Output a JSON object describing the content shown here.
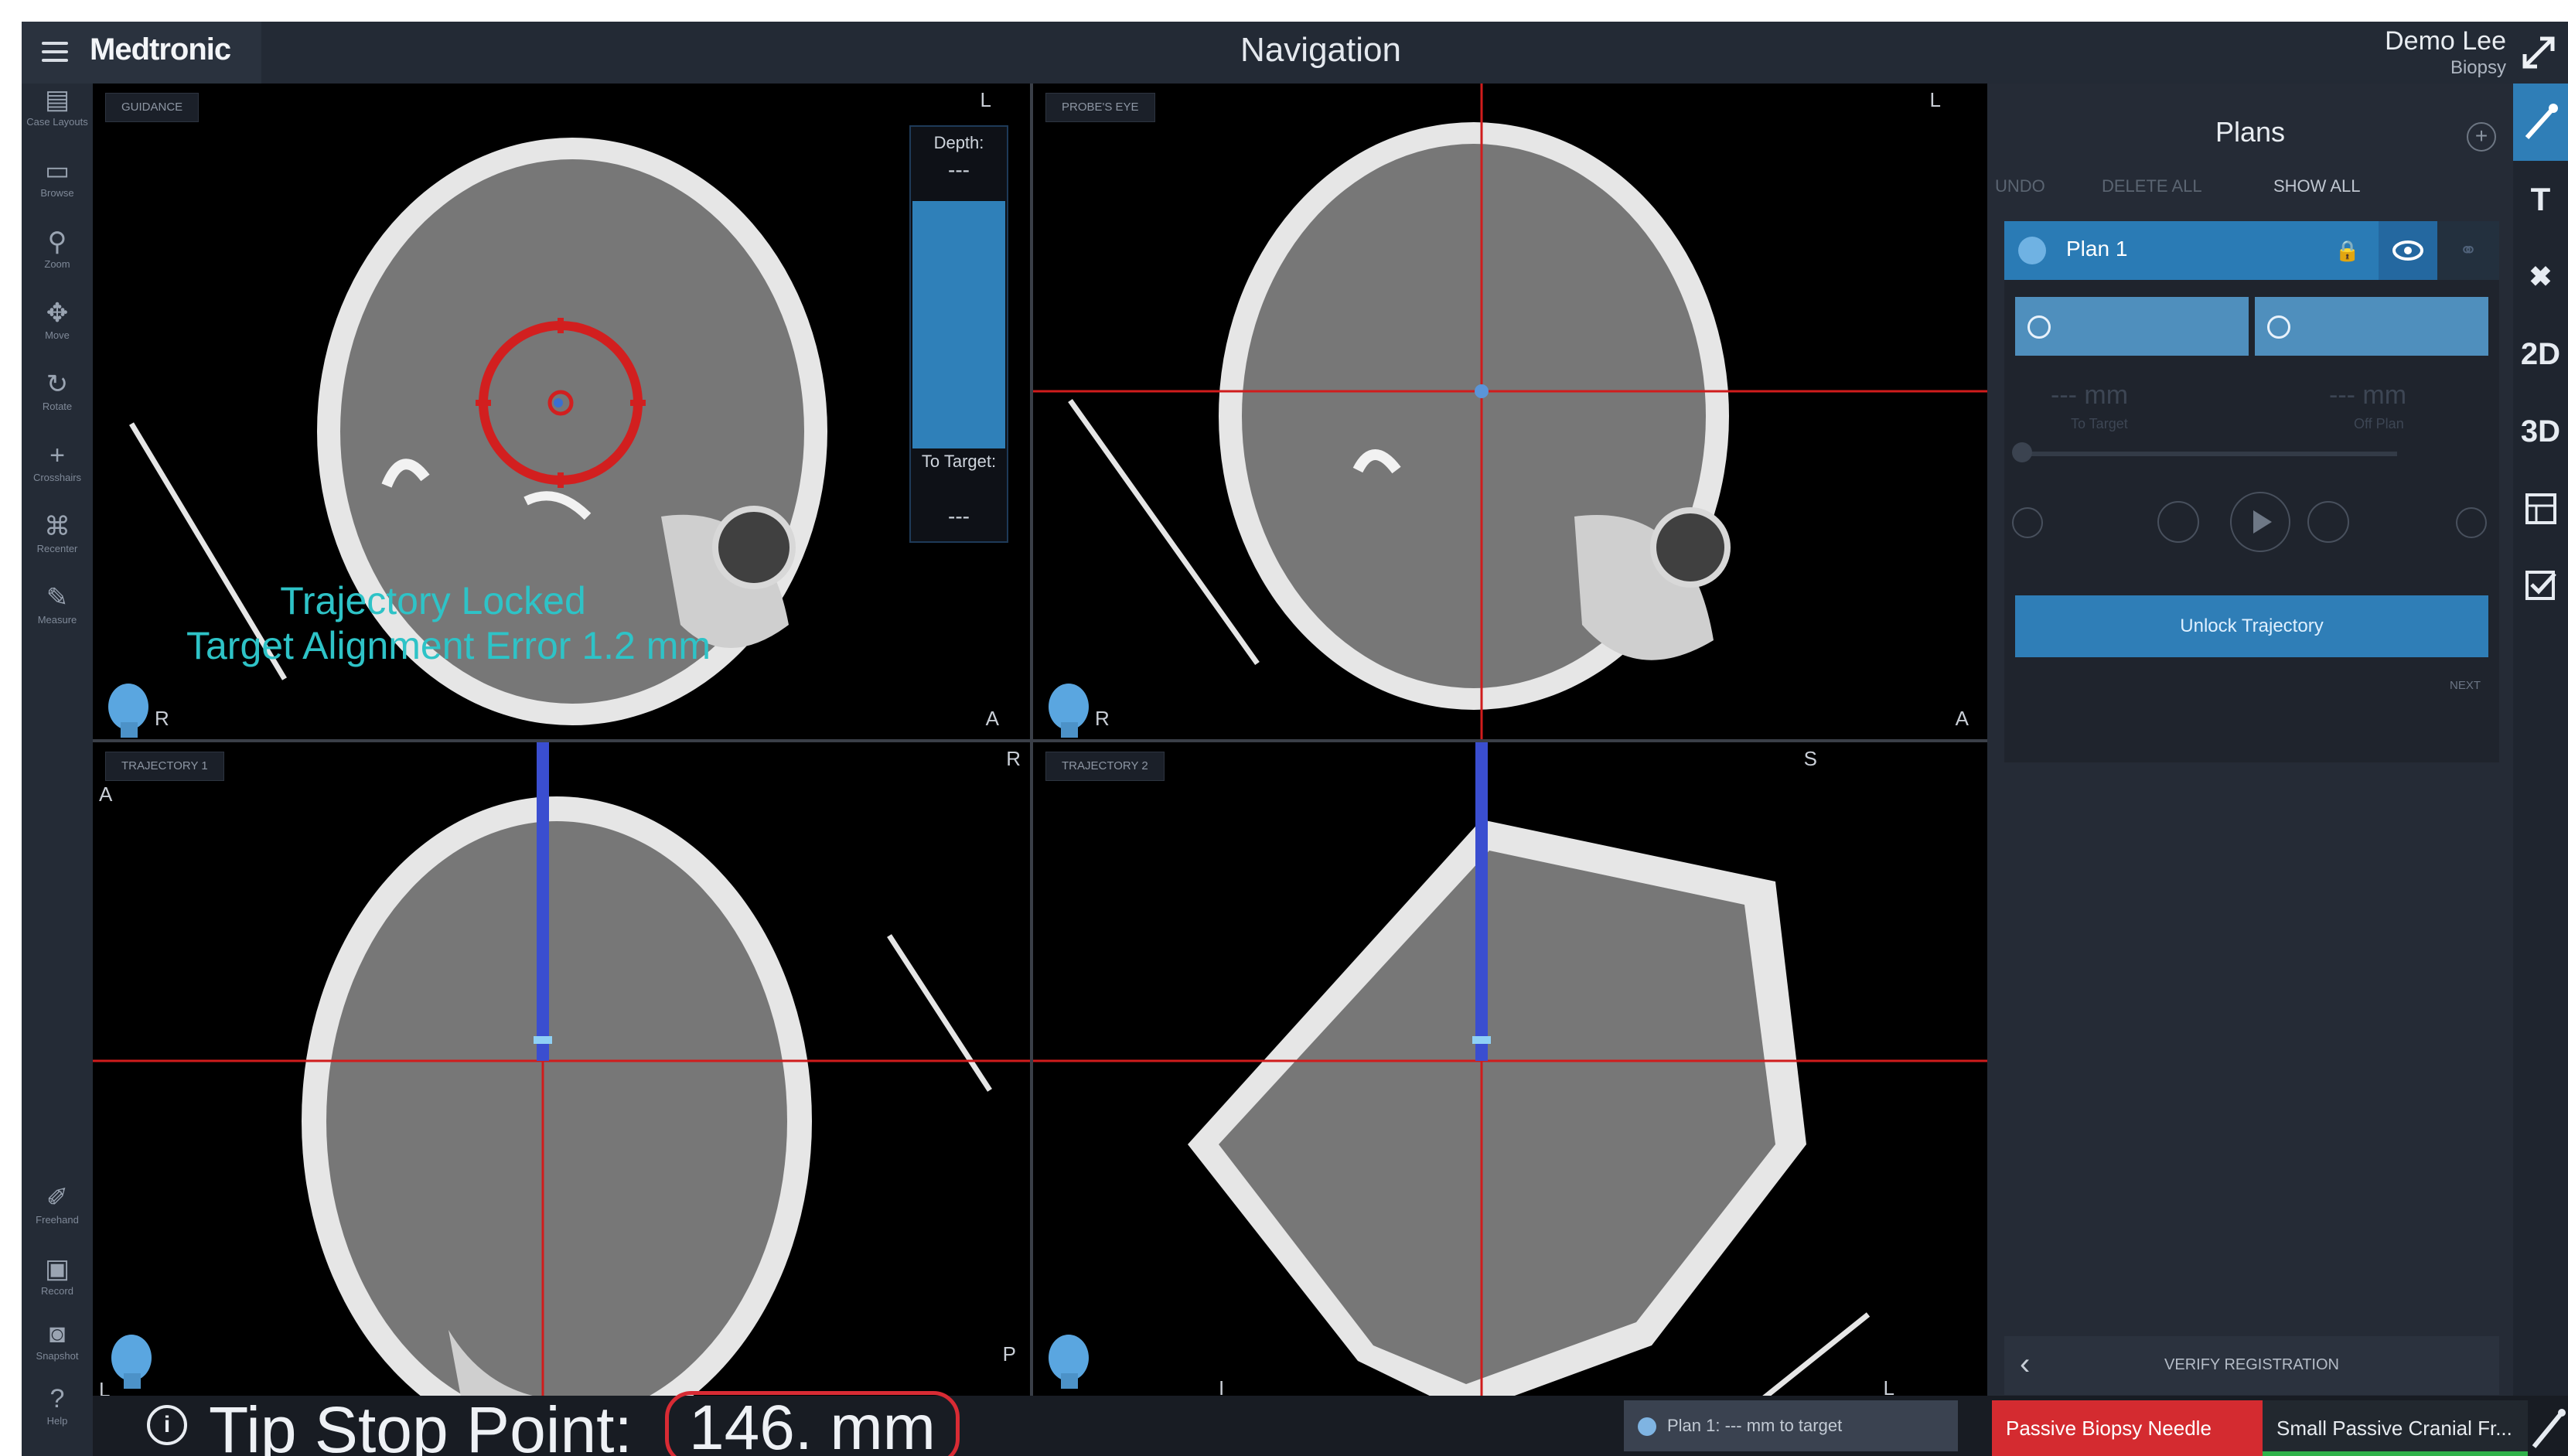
{
  "header": {
    "brand": "Medtronic",
    "title": "Navigation",
    "user_name": "Demo Lee",
    "user_role": "Biopsy"
  },
  "left_tools": [
    {
      "icon": "case-layouts-icon",
      "label": "Case Layouts"
    },
    {
      "icon": "browse-icon",
      "label": "Browse"
    },
    {
      "icon": "zoom-icon",
      "label": "Zoom"
    },
    {
      "icon": "move-icon",
      "label": "Move"
    },
    {
      "icon": "rotate-icon",
      "label": "Rotate"
    },
    {
      "icon": "crosshairs-icon",
      "label": "Crosshairs"
    },
    {
      "icon": "recenter-icon",
      "label": "Recenter"
    },
    {
      "icon": "measure-icon",
      "label": "Measure"
    },
    {
      "icon": "freehand-icon",
      "label": "Freehand"
    },
    {
      "icon": "record-icon",
      "label": "Record"
    },
    {
      "icon": "snapshot-icon",
      "label": "Snapshot"
    },
    {
      "icon": "help-icon",
      "label": "Help"
    }
  ],
  "viewports": {
    "top_left": {
      "dropdown": "GUIDANCE",
      "orient_top_right": "L",
      "orient_bottom_left": "R",
      "orient_bottom_right": "A",
      "overlay_line1": "Trajectory Locked",
      "overlay_line2": "Target Alignment Error   1.2 mm",
      "depth_label": "Depth:",
      "depth_value": "---",
      "to_target_label": "To Target:",
      "to_target_value": "---"
    },
    "top_right": {
      "dropdown": "PROBE'S EYE",
      "orient_top_right": "L",
      "orient_bottom_left": "R",
      "orient_bottom_right": "A"
    },
    "bottom_left": {
      "dropdown": "TRAJECTORY 1",
      "orient_top_left": "A",
      "orient_top_right": "R",
      "orient_bottom_left": "L",
      "orient_bottom_right": "P"
    },
    "bottom_right": {
      "dropdown": "TRAJECTORY 2",
      "orient_top_right": "S",
      "orient_bottom_left": "I",
      "orient_bottom_right": "L"
    }
  },
  "plans_panel": {
    "title": "Plans",
    "undo": "UNDO",
    "delete_all": "DELETE ALL",
    "show_all": "SHOW ALL",
    "plan_name": "Plan 1",
    "distance_value": "--- mm",
    "distance_label": "To Target",
    "offplan_value": "--- mm",
    "offplan_label": "Off Plan",
    "unlock_label": "Unlock Trajectory",
    "next_label": "NEXT",
    "verify_label": "VERIFY REGISTRATION"
  },
  "right_tools": [
    {
      "icon": "trajectory-tool-icon",
      "label": ""
    },
    {
      "icon": "text-tool-icon",
      "label": "T"
    },
    {
      "icon": "pin-tool-icon",
      "label": ""
    },
    {
      "icon": "2d-view-icon",
      "label": "2D"
    },
    {
      "icon": "3d-view-icon",
      "label": "3D"
    },
    {
      "icon": "layout-icon",
      "label": ""
    },
    {
      "icon": "checklist-icon",
      "label": ""
    }
  ],
  "status": {
    "tip_label": "Tip Stop Point:",
    "tip_value": "146.  mm",
    "plan_status": "Plan 1: --- mm to target",
    "instrument": "Passive Biopsy Needle",
    "frame": "Small Passive Cranial Fr..."
  },
  "colors": {
    "accent": "#2f7eb7",
    "alert": "#d42b30",
    "overlay_text": "#2ec3c7",
    "crosshair": "#d01c1c",
    "trajectory": "#3a4ed0"
  }
}
